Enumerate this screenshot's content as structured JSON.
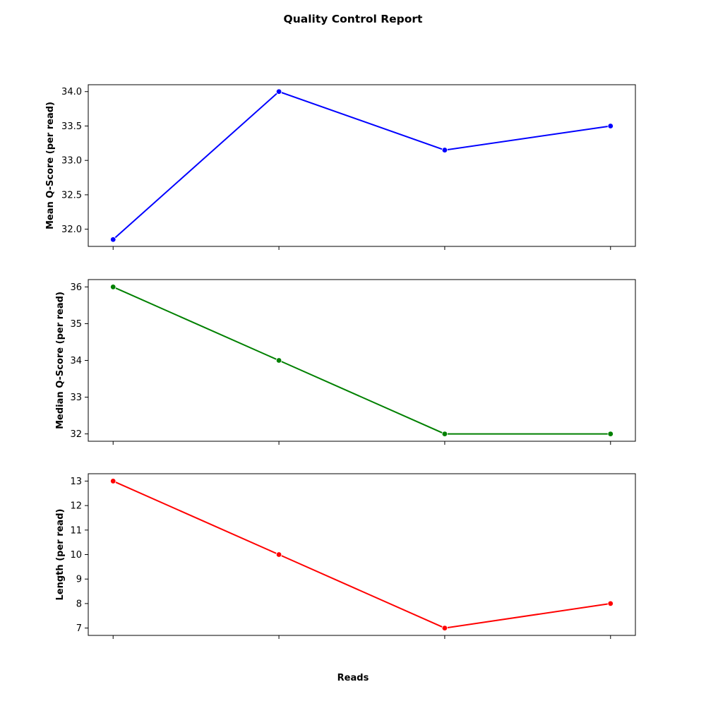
{
  "figure": {
    "title": "Quality Control Report",
    "shared_xlabel": "Reads"
  },
  "chart_data": [
    {
      "type": "line",
      "title": "",
      "xlabel": "",
      "ylabel": "Mean Q-Score (per read)",
      "x": [
        0,
        1,
        2,
        3
      ],
      "values": [
        31.85,
        34.0,
        33.15,
        33.5
      ],
      "xlim": [
        -0.15,
        3.15
      ],
      "ylim": [
        31.75,
        34.1
      ],
      "yticks": [
        32.0,
        32.5,
        33.0,
        33.5,
        34.0
      ],
      "ytick_labels": [
        "32.0",
        "32.5",
        "33.0",
        "33.5",
        "34.0"
      ],
      "color": "#0000ff",
      "marker": "circle",
      "grid": false
    },
    {
      "type": "line",
      "title": "",
      "xlabel": "",
      "ylabel": "Median Q-Score (per read)",
      "x": [
        0,
        1,
        2,
        3
      ],
      "values": [
        36,
        34,
        32,
        32
      ],
      "xlim": [
        -0.15,
        3.15
      ],
      "ylim": [
        31.8,
        36.2
      ],
      "yticks": [
        32,
        33,
        34,
        35,
        36
      ],
      "ytick_labels": [
        "32",
        "33",
        "34",
        "35",
        "36"
      ],
      "color": "#008000",
      "marker": "circle",
      "grid": false
    },
    {
      "type": "line",
      "title": "",
      "xlabel": "Reads",
      "ylabel": "Length (per read)",
      "x": [
        0,
        1,
        2,
        3
      ],
      "values": [
        13,
        10,
        7,
        8
      ],
      "xlim": [
        -0.15,
        3.15
      ],
      "ylim": [
        6.7,
        13.3
      ],
      "yticks": [
        7,
        8,
        9,
        10,
        11,
        12,
        13
      ],
      "ytick_labels": [
        "7",
        "8",
        "9",
        "10",
        "11",
        "12",
        "13"
      ],
      "color": "#ff0000",
      "marker": "circle",
      "grid": false
    }
  ]
}
